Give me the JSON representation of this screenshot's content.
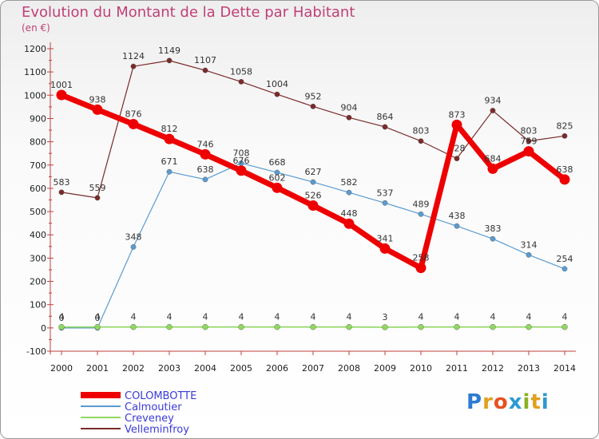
{
  "header": {
    "title": "Evolution du Montant de la Dette par Habitant",
    "subtitle": "(en €)"
  },
  "brand": {
    "letters": [
      "P",
      "r",
      "o",
      "x",
      "i",
      "t",
      "i"
    ],
    "colors": [
      "#2b7bd0",
      "#e0a020",
      "#e85020",
      "#2b9ad0",
      "#8ab020",
      "#e0a020",
      "#2b9ad0"
    ]
  },
  "chart_data": {
    "type": "line",
    "x": [
      "2000",
      "2001",
      "2002",
      "2003",
      "2004",
      "2005",
      "2006",
      "2007",
      "2008",
      "2009",
      "2010",
      "2011",
      "2012",
      "2013",
      "2014"
    ],
    "ylim": [
      -100,
      1200
    ],
    "yticks": [
      -100,
      0,
      100,
      200,
      300,
      400,
      500,
      600,
      700,
      800,
      900,
      1000,
      1100,
      1200
    ],
    "grid": false,
    "legend_position": "bottom-left",
    "series": [
      {
        "name": "Velleminfroy",
        "color": "#7a2a2a",
        "values": [
          583,
          559,
          1124,
          1149,
          1107,
          1058,
          1004,
          952,
          904,
          864,
          803,
          728,
          934,
          803,
          825
        ]
      },
      {
        "name": "Calmoutier",
        "color": "#5a9bd0",
        "values": [
          0,
          0,
          348,
          671,
          638,
          708,
          668,
          627,
          582,
          537,
          489,
          438,
          383,
          314,
          254
        ]
      },
      {
        "name": "Creveney",
        "color": "#90d860",
        "values": [
          4,
          4,
          4,
          4,
          4,
          4,
          4,
          4,
          4,
          3,
          4,
          4,
          4,
          4,
          4
        ]
      },
      {
        "name": "COLOMBOTTE",
        "color": "#ee0000",
        "values": [
          1001,
          938,
          876,
          812,
          746,
          676,
          602,
          526,
          448,
          341,
          258,
          873,
          684,
          759,
          638
        ]
      }
    ],
    "legend_order": [
      "COLOMBOTTE",
      "Calmoutier",
      "Creveney",
      "Velleminfroy"
    ],
    "legend_text_color": "#3a3ad8"
  }
}
